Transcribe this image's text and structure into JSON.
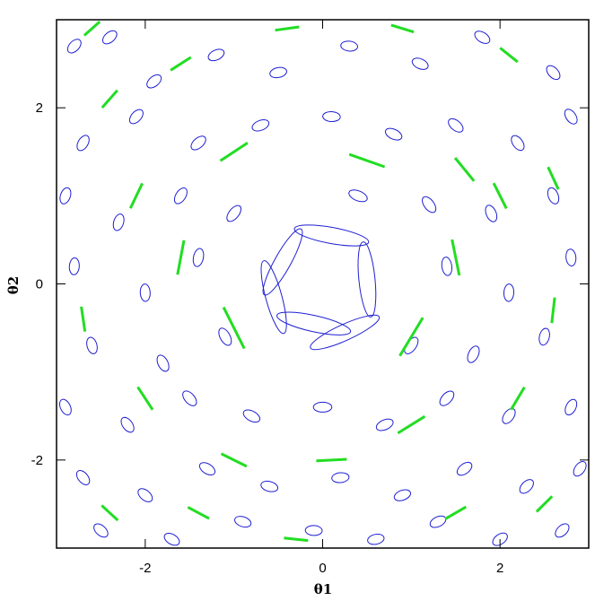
{
  "chart_data": {
    "type": "scatter",
    "title": "",
    "xlabel": "θ1",
    "ylabel": "θ2",
    "xlim": [
      -3,
      3
    ],
    "ylim": [
      -3,
      3
    ],
    "xticks": [
      -2,
      0,
      2
    ],
    "yticks": [
      -2,
      0,
      2
    ],
    "grid": false,
    "layers": [
      {
        "kind": "ellipse",
        "color": "#1f1fd2",
        "description": "lensed source galaxy images (ellipses)"
      },
      {
        "kind": "shear-stick",
        "color": "#22dd22",
        "description": "tangential shear sticks"
      }
    ],
    "lens_center": [
      0,
      0
    ],
    "sample_ellipses": [
      [
        -2.8,
        2.7
      ],
      [
        -2.4,
        2.8
      ],
      [
        -1.9,
        2.3
      ],
      [
        -1.2,
        2.6
      ],
      [
        -0.5,
        2.4
      ],
      [
        0.3,
        2.7
      ],
      [
        1.1,
        2.5
      ],
      [
        1.8,
        2.8
      ],
      [
        2.6,
        2.4
      ],
      [
        -2.7,
        1.6
      ],
      [
        -2.1,
        1.9
      ],
      [
        -1.4,
        1.6
      ],
      [
        -0.7,
        1.8
      ],
      [
        0.1,
        1.9
      ],
      [
        0.8,
        1.7
      ],
      [
        1.5,
        1.8
      ],
      [
        2.2,
        1.6
      ],
      [
        2.8,
        1.9
      ],
      [
        -2.9,
        1.0
      ],
      [
        -2.3,
        0.7
      ],
      [
        -1.6,
        1.0
      ],
      [
        -1.0,
        0.8
      ],
      [
        0.4,
        1.0
      ],
      [
        1.2,
        0.9
      ],
      [
        1.9,
        0.8
      ],
      [
        2.6,
        1.0
      ],
      [
        -2.8,
        0.2
      ],
      [
        -2.0,
        -0.1
      ],
      [
        -1.4,
        0.3
      ],
      [
        1.4,
        0.2
      ],
      [
        2.1,
        -0.1
      ],
      [
        2.8,
        0.3
      ],
      [
        -2.6,
        -0.7
      ],
      [
        -1.8,
        -0.9
      ],
      [
        -1.1,
        -0.6
      ],
      [
        1.0,
        -0.7
      ],
      [
        1.7,
        -0.8
      ],
      [
        2.5,
        -0.6
      ],
      [
        -2.9,
        -1.4
      ],
      [
        -2.2,
        -1.6
      ],
      [
        -1.5,
        -1.3
      ],
      [
        -0.8,
        -1.5
      ],
      [
        0.0,
        -1.4
      ],
      [
        0.7,
        -1.6
      ],
      [
        1.4,
        -1.3
      ],
      [
        2.1,
        -1.5
      ],
      [
        2.8,
        -1.4
      ],
      [
        -2.7,
        -2.2
      ],
      [
        -2.0,
        -2.4
      ],
      [
        -1.3,
        -2.1
      ],
      [
        -0.6,
        -2.3
      ],
      [
        0.2,
        -2.2
      ],
      [
        0.9,
        -2.4
      ],
      [
        1.6,
        -2.1
      ],
      [
        2.3,
        -2.3
      ],
      [
        2.9,
        -2.1
      ],
      [
        -2.5,
        -2.8
      ],
      [
        -1.7,
        -2.9
      ],
      [
        -0.9,
        -2.7
      ],
      [
        -0.1,
        -2.8
      ],
      [
        0.6,
        -2.9
      ],
      [
        1.3,
        -2.7
      ],
      [
        2.0,
        -2.9
      ],
      [
        2.7,
        -2.8
      ]
    ],
    "arcs": [
      {
        "x": -0.45,
        "y": 0.25
      },
      {
        "x": 0.1,
        "y": 0.55
      },
      {
        "x": 0.5,
        "y": 0.05
      },
      {
        "x": -0.1,
        "y": -0.45
      },
      {
        "x": 0.25,
        "y": -0.55
      },
      {
        "x": -0.55,
        "y": -0.15
      }
    ],
    "sample_sticks": [
      [
        -2.6,
        2.9
      ],
      [
        -1.6,
        2.5
      ],
      [
        -0.4,
        2.9
      ],
      [
        0.9,
        2.9
      ],
      [
        2.1,
        2.6
      ],
      [
        -2.4,
        2.1
      ],
      [
        -1.0,
        1.5
      ],
      [
        0.5,
        1.4
      ],
      [
        1.6,
        1.3
      ],
      [
        2.6,
        1.2
      ],
      [
        -2.1,
        1.0
      ],
      [
        2.0,
        1.0
      ],
      [
        -1.6,
        0.3
      ],
      [
        1.5,
        0.3
      ],
      [
        -2.7,
        -0.4
      ],
      [
        2.6,
        -0.3
      ],
      [
        -1.0,
        -0.5
      ],
      [
        1.0,
        -0.6
      ],
      [
        -2.0,
        -1.3
      ],
      [
        2.2,
        -1.3
      ],
      [
        -1.0,
        -2.0
      ],
      [
        1.0,
        -1.6
      ],
      [
        0.1,
        -2.0
      ],
      [
        -2.4,
        -2.6
      ],
      [
        2.5,
        -2.5
      ],
      [
        -0.3,
        -2.9
      ],
      [
        1.5,
        -2.6
      ],
      [
        -1.4,
        -2.6
      ]
    ]
  }
}
